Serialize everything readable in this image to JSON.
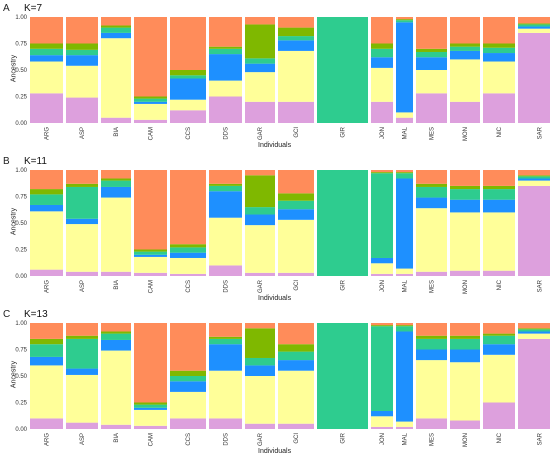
{
  "chart_data": [
    {
      "type": "bar",
      "subtype": "stacked-admixture",
      "panel_letter": "A",
      "title": "K=7",
      "xlabel": "Individuals",
      "ylabel": "Ancestry",
      "ylim": [
        0,
        1
      ],
      "yticks": [
        "0.00",
        "0.25",
        "0.50",
        "0.75",
        "1.00"
      ],
      "categories": [
        "ARG",
        "ASP",
        "BIA",
        "CAM",
        "CCS",
        "DDS",
        "GAR",
        "GCI",
        "GIR",
        "JON",
        "MAL",
        "MES",
        "MON",
        "NIC",
        "SAR"
      ],
      "grid": false,
      "populations": [
        {
          "name": "ARG",
          "components": [
            0.28,
            0.3,
            0.06,
            0.06,
            0.05,
            0.25
          ]
        },
        {
          "name": "ASP",
          "components": [
            0.24,
            0.3,
            0.1,
            0.05,
            0.06,
            0.25
          ]
        },
        {
          "name": "BIA",
          "components": [
            0.05,
            0.75,
            0.05,
            0.05,
            0.02,
            0.08
          ]
        },
        {
          "name": "CAM",
          "components": [
            0.03,
            0.15,
            0.02,
            0.03,
            0.02,
            0.75
          ]
        },
        {
          "name": "CCS",
          "components": [
            0.12,
            0.1,
            0.2,
            0.03,
            0.05,
            0.5
          ]
        },
        {
          "name": "DDS",
          "components": [
            0.25,
            0.15,
            0.25,
            0.05,
            0.02,
            0.28
          ]
        },
        {
          "name": "GAR",
          "components": [
            0.2,
            0.28,
            0.08,
            0.05,
            0.32,
            0.07
          ]
        },
        {
          "name": "GCI",
          "components": [
            0.2,
            0.48,
            0.1,
            0.04,
            0.08,
            0.1
          ]
        },
        {
          "name": "GIR",
          "components": [
            0.0,
            0.0,
            0.0,
            1.0,
            0.0,
            0.0
          ]
        },
        {
          "name": "JON",
          "components": [
            0.2,
            0.32,
            0.1,
            0.08,
            0.05,
            0.25
          ]
        },
        {
          "name": "MAL",
          "components": [
            0.05,
            0.05,
            0.85,
            0.02,
            0.01,
            0.02
          ]
        },
        {
          "name": "MES",
          "components": [
            0.28,
            0.22,
            0.12,
            0.05,
            0.03,
            0.3
          ]
        },
        {
          "name": "MON",
          "components": [
            0.2,
            0.4,
            0.08,
            0.04,
            0.03,
            0.25
          ]
        },
        {
          "name": "NIC",
          "components": [
            0.28,
            0.3,
            0.08,
            0.05,
            0.04,
            0.25
          ]
        },
        {
          "name": "SAR",
          "components": [
            0.85,
            0.04,
            0.02,
            0.02,
            0.01,
            0.06
          ]
        }
      ],
      "component_colors": [
        "#DDA0DD",
        "#FFFF99",
        "#1E90FF",
        "#2ECC8F",
        "#7FB800",
        "#FF8C5A"
      ]
    },
    {
      "type": "bar",
      "subtype": "stacked-admixture",
      "panel_letter": "B",
      "title": "K=11",
      "xlabel": "Individuals",
      "ylabel": "Ancestry",
      "ylim": [
        0,
        1
      ],
      "yticks": [
        "0.00",
        "0.25",
        "0.50",
        "0.75",
        "1.00"
      ],
      "categories": [
        "ARG",
        "ASP",
        "BIA",
        "CAM",
        "CCS",
        "DDS",
        "GAR",
        "GCI",
        "GIR",
        "JON",
        "MAL",
        "MES",
        "MON",
        "NIC",
        "SAR"
      ],
      "grid": false,
      "populations": [
        {
          "name": "ARG",
          "components": [
            0.06,
            0.55,
            0.06,
            0.1,
            0.05,
            0.18
          ]
        },
        {
          "name": "ASP",
          "components": [
            0.04,
            0.45,
            0.05,
            0.3,
            0.03,
            0.13
          ]
        },
        {
          "name": "BIA",
          "components": [
            0.04,
            0.7,
            0.1,
            0.06,
            0.02,
            0.08
          ]
        },
        {
          "name": "CAM",
          "components": [
            0.03,
            0.15,
            0.02,
            0.03,
            0.02,
            0.75
          ]
        },
        {
          "name": "CCS",
          "components": [
            0.02,
            0.15,
            0.05,
            0.05,
            0.03,
            0.7
          ]
        },
        {
          "name": "DDS",
          "components": [
            0.1,
            0.45,
            0.25,
            0.05,
            0.02,
            0.13
          ]
        },
        {
          "name": "GAR",
          "components": [
            0.03,
            0.45,
            0.1,
            0.07,
            0.3,
            0.05
          ]
        },
        {
          "name": "GCI",
          "components": [
            0.03,
            0.5,
            0.1,
            0.08,
            0.07,
            0.22
          ]
        },
        {
          "name": "GIR",
          "components": [
            0.0,
            0.0,
            0.0,
            1.0,
            0.0,
            0.0
          ]
        },
        {
          "name": "JON",
          "components": [
            0.02,
            0.1,
            0.05,
            0.8,
            0.01,
            0.02
          ]
        },
        {
          "name": "MAL",
          "components": [
            0.02,
            0.05,
            0.85,
            0.05,
            0.01,
            0.02
          ]
        },
        {
          "name": "MES",
          "components": [
            0.04,
            0.6,
            0.1,
            0.1,
            0.03,
            0.13
          ]
        },
        {
          "name": "MON",
          "components": [
            0.05,
            0.55,
            0.12,
            0.1,
            0.03,
            0.15
          ]
        },
        {
          "name": "NIC",
          "components": [
            0.05,
            0.55,
            0.12,
            0.1,
            0.03,
            0.15
          ]
        },
        {
          "name": "SAR",
          "components": [
            0.85,
            0.05,
            0.02,
            0.02,
            0.01,
            0.05
          ]
        }
      ],
      "component_colors": [
        "#DDA0DD",
        "#FFFF99",
        "#1E90FF",
        "#2ECC8F",
        "#7FB800",
        "#FF8C5A"
      ]
    },
    {
      "type": "bar",
      "subtype": "stacked-admixture",
      "panel_letter": "C",
      "title": "K=13",
      "xlabel": "Individuals",
      "ylabel": "Ancestry",
      "ylim": [
        0,
        1
      ],
      "yticks": [
        "0.00",
        "0.25",
        "0.50",
        "0.75",
        "1.00"
      ],
      "categories": [
        "ARG",
        "ASP",
        "BIA",
        "CAM",
        "CCS",
        "DDS",
        "GAR",
        "GCI",
        "GIR",
        "JON",
        "MAL",
        "MES",
        "MON",
        "NIC",
        "SAR"
      ],
      "grid": false,
      "populations": [
        {
          "name": "ARG",
          "components": [
            0.1,
            0.5,
            0.08,
            0.12,
            0.05,
            0.15
          ]
        },
        {
          "name": "ASP",
          "components": [
            0.06,
            0.45,
            0.06,
            0.28,
            0.03,
            0.12
          ]
        },
        {
          "name": "BIA",
          "components": [
            0.04,
            0.7,
            0.1,
            0.06,
            0.02,
            0.08
          ]
        },
        {
          "name": "CAM",
          "components": [
            0.03,
            0.15,
            0.02,
            0.03,
            0.02,
            0.75
          ]
        },
        {
          "name": "CCS",
          "components": [
            0.1,
            0.25,
            0.1,
            0.05,
            0.05,
            0.45
          ]
        },
        {
          "name": "DDS",
          "components": [
            0.1,
            0.45,
            0.25,
            0.05,
            0.02,
            0.13
          ]
        },
        {
          "name": "GAR",
          "components": [
            0.05,
            0.45,
            0.1,
            0.07,
            0.28,
            0.05
          ]
        },
        {
          "name": "GCI",
          "components": [
            0.05,
            0.5,
            0.1,
            0.08,
            0.07,
            0.2
          ]
        },
        {
          "name": "GIR",
          "components": [
            0.0,
            0.0,
            0.0,
            1.0,
            0.0,
            0.0
          ]
        },
        {
          "name": "JON",
          "components": [
            0.02,
            0.1,
            0.05,
            0.8,
            0.01,
            0.02
          ]
        },
        {
          "name": "MAL",
          "components": [
            0.02,
            0.05,
            0.85,
            0.05,
            0.01,
            0.02
          ]
        },
        {
          "name": "MES",
          "components": [
            0.1,
            0.55,
            0.1,
            0.1,
            0.03,
            0.12
          ]
        },
        {
          "name": "MON",
          "components": [
            0.08,
            0.55,
            0.12,
            0.1,
            0.03,
            0.12
          ]
        },
        {
          "name": "NIC",
          "components": [
            0.25,
            0.45,
            0.1,
            0.08,
            0.02,
            0.1
          ]
        },
        {
          "name": "SAR",
          "components": [
            0.85,
            0.05,
            0.02,
            0.02,
            0.01,
            0.05
          ]
        }
      ],
      "component_colors": [
        "#DDA0DD",
        "#FFFF99",
        "#1E90FF",
        "#2ECC8F",
        "#7FB800",
        "#FF8C5A"
      ]
    }
  ]
}
